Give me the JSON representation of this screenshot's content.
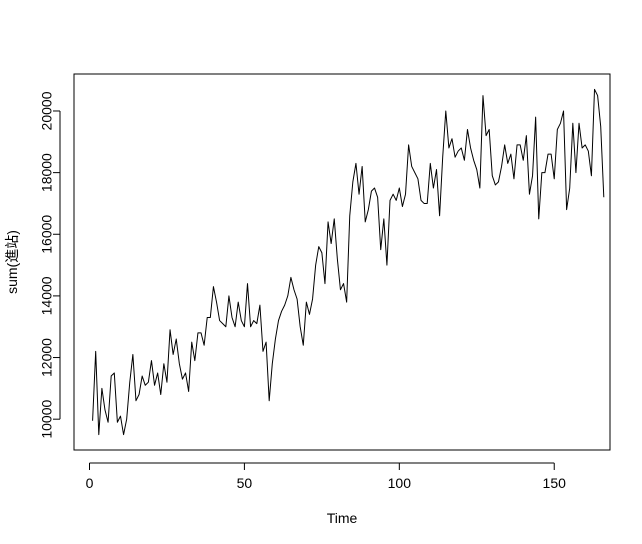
{
  "chart_data": {
    "type": "line",
    "xlabel": "Time",
    "ylabel": "sum(進站)",
    "xlim": [
      -5,
      168
    ],
    "ylim": [
      9000,
      21200
    ],
    "x_ticks": [
      0,
      50,
      100,
      150
    ],
    "x_tick_labels": [
      "0",
      "50",
      "100",
      "150"
    ],
    "y_ticks": [
      10000,
      12000,
      14000,
      16000,
      18000,
      20000
    ],
    "y_tick_labels": [
      "10000",
      "12000",
      "14000",
      "16000",
      "18000",
      "20000"
    ],
    "grid": false,
    "legend": "none",
    "line_color": "#000000",
    "x_start": 1,
    "series": [
      {
        "values": [
          9950,
          12200,
          9500,
          11000,
          10300,
          9900,
          11400,
          11500,
          9900,
          10100,
          9500,
          10000,
          11200,
          12100,
          10600,
          10800,
          11400,
          11100,
          11200,
          11900,
          11100,
          11500,
          10800,
          11800,
          11200,
          12900,
          12100,
          12600,
          11800,
          11300,
          11500,
          10900,
          12500,
          11900,
          12800,
          12800,
          12400,
          13300,
          13300,
          14300,
          13800,
          13200,
          13100,
          13000,
          14000,
          13300,
          13000,
          13800,
          13200,
          13000,
          14400,
          13000,
          13200,
          13100,
          13700,
          12200,
          12500,
          10600,
          11800,
          12600,
          13200,
          13500,
          13700,
          14000,
          14600,
          14200,
          13900,
          13000,
          12400,
          13800,
          13400,
          13900,
          15000,
          15600,
          15400,
          14400,
          16400,
          15700,
          16500,
          15200,
          14200,
          14400,
          13800,
          16600,
          17700,
          18300,
          17300,
          18200,
          16400,
          16800,
          17400,
          17500,
          17200,
          15500,
          16500,
          15000,
          17100,
          17300,
          17100,
          17500,
          16900,
          17300,
          18900,
          18200,
          18000,
          17800,
          17100,
          17000,
          17000,
          18300,
          17500,
          18100,
          16600,
          18500,
          20000,
          18800,
          19100,
          18500,
          18700,
          18800,
          18400,
          19400,
          18800,
          18400,
          18100,
          17500,
          20500,
          19200,
          19400,
          17900,
          17600,
          17700,
          18200,
          18900,
          18300,
          18600,
          17800,
          18900,
          18900,
          18400,
          19200,
          17300,
          17900,
          19800,
          16500,
          18000,
          18000,
          18600,
          18600,
          17800,
          19400,
          19600,
          20000,
          16800,
          17500,
          19600,
          18000,
          19600,
          18800,
          18900,
          18700,
          17900,
          20700,
          20500,
          19500,
          17200
        ]
      }
    ]
  }
}
